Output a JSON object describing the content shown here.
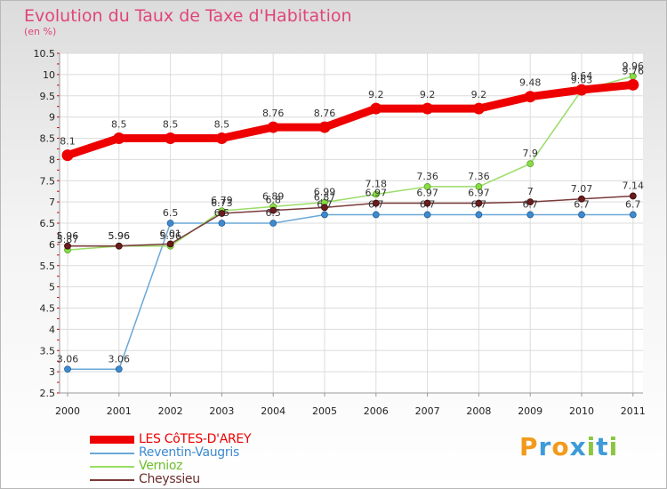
{
  "header": {
    "title": "Evolution du Taux de Taxe d'Habitation",
    "subtitle": "(en %)"
  },
  "brand": {
    "letters": [
      "P",
      "r",
      "o",
      "x",
      "i",
      "t",
      "i"
    ],
    "colors": [
      "#f29a1b",
      "#3d9bd9",
      "#f29a1b",
      "#3d9bd9",
      "#8cc63f",
      "#3d9bd9",
      "#8cc63f"
    ]
  },
  "chart_data": {
    "type": "line",
    "title": "Evolution du Taux de Taxe d'Habitation",
    "ylabel": "(en %)",
    "xlabel": "",
    "categories": [
      "2000",
      "2001",
      "2002",
      "2003",
      "2004",
      "2005",
      "2006",
      "2007",
      "2008",
      "2009",
      "2010",
      "2011"
    ],
    "ylim": [
      2.5,
      10.5
    ],
    "yticks": [
      "2.5",
      "3",
      "3.5",
      "4",
      "4.5",
      "5",
      "5.5",
      "6",
      "6.5",
      "7",
      "7.5",
      "8",
      "8.5",
      "9",
      "9.5",
      "10",
      "10.5"
    ],
    "grid": true,
    "legend_position": "bottom-left",
    "series": [
      {
        "name": "LES CôTES-D'AREY",
        "color": "#ee0000",
        "values": [
          8.1,
          8.5,
          8.5,
          8.5,
          8.76,
          8.76,
          9.2,
          9.2,
          9.2,
          9.48,
          9.64,
          9.76
        ],
        "labels": [
          "8.1",
          "8.5",
          "8.5",
          "8.5",
          "8.76",
          "8.76",
          "9.2",
          "9.2",
          "9.2",
          "9.48",
          "9.64",
          "9.76"
        ]
      },
      {
        "name": "Reventin-Vaugris",
        "color": "#6aa8d8",
        "values": [
          3.06,
          3.06,
          6.5,
          6.5,
          6.5,
          6.7,
          6.7,
          6.7,
          6.7,
          6.7,
          6.7,
          6.7
        ],
        "labels": [
          "3.06",
          "3.06",
          "6.5",
          "6.5",
          "6.5",
          "6.7",
          "6.7",
          "6.7",
          "6.7",
          "6.7",
          "6.7",
          "6.7"
        ]
      },
      {
        "name": "Vernioz",
        "color": "#99dd66",
        "values": [
          5.87,
          5.96,
          5.96,
          6.79,
          6.89,
          6.99,
          7.18,
          7.36,
          7.36,
          7.9,
          9.63,
          9.96
        ],
        "labels": [
          "5.87",
          "5.96",
          "5.96",
          "6.79",
          "6.89",
          "6.99",
          "7.18",
          "7.36",
          "7.36",
          "7.9",
          "9.63",
          "9.96"
        ]
      },
      {
        "name": "Cheyssieu",
        "color": "#7a3a3a",
        "values": [
          5.96,
          5.96,
          6.01,
          6.73,
          6.8,
          6.87,
          6.97,
          6.97,
          6.97,
          7.0,
          7.07,
          7.14
        ],
        "labels": [
          "5.96",
          "5.96",
          "6.01",
          "6.73",
          "6.8",
          "6.87",
          "6.97",
          "6.97",
          "6.97",
          "7",
          "7.07",
          "7.14"
        ]
      }
    ]
  }
}
